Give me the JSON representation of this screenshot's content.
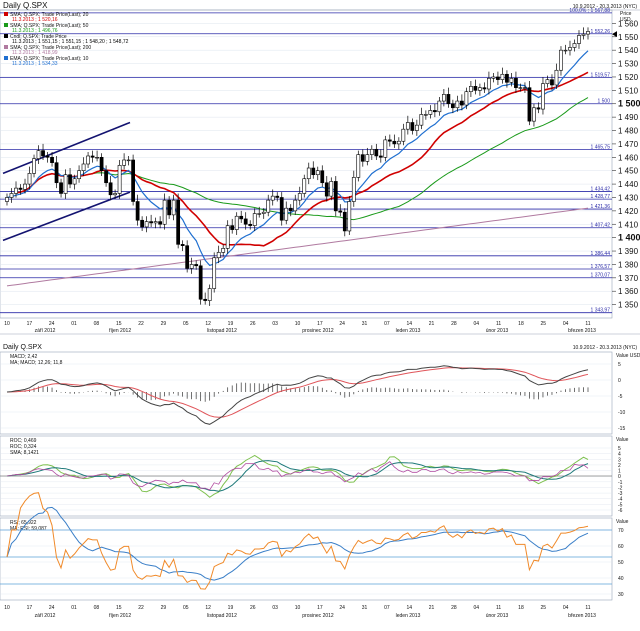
{
  "header": {
    "title": "Daily Q.SPX",
    "date_range": "10.9.2012 - 20.3.2013 (NYC)",
    "bottom_date_range": "10.9.2012 - 20.3.2013 (NYC)"
  },
  "main_panel": {
    "axis_title": "Price",
    "axis_unit": "USD",
    "legend": [
      {
        "label": "SMA; Q.SPX; Trade Price(Last); 20",
        "value": "11.3.2013 ; 1 520,16",
        "color": "#d00000"
      },
      {
        "label": "SMA; Q.SPX; Trade Price(Last); 50",
        "value": "11.3.2013 ; 1 496,76",
        "color": "#1a9a1a"
      },
      {
        "label": "Cndl; Q.SPX; Trade Price",
        "value": "11.3.2013 ; 1 551,15 ; 1 551,15 ; 1 548,20 ; 1 548,72",
        "color": "#000000"
      },
      {
        "label": "SMA; Q.SPX; Trade Price(Last); 200",
        "value": "11.3.2013 ; 1 418,99",
        "color": "#b07aa0"
      },
      {
        "label": "EMA; Q.SPX; Trade Price(Last); 10",
        "value": "11.3.2013 ; 1 534,33",
        "color": "#1f6fd0"
      }
    ],
    "level_labels": [
      "100,0% ; 1 567,88",
      "1 552,26",
      "1 519,57",
      "1 500",
      "1 465,75",
      "1 434,42",
      "1 428,77",
      "1 421,36",
      "1 407,42",
      "1 386,44",
      "1 376,57",
      "1 370,07",
      "1 343,97"
    ],
    "last_price_label": "1 552,26"
  },
  "chart_data": [
    {
      "type": "candlestick",
      "title": "Daily Q.SPX",
      "ylabel": "Price USD",
      "ylim": [
        1340,
        1570
      ],
      "yticks": [
        1350,
        1360,
        1370,
        1380,
        1390,
        1400,
        1410,
        1420,
        1430,
        1440,
        1450,
        1460,
        1470,
        1480,
        1490,
        1500,
        1510,
        1520,
        1530,
        1540,
        1550,
        1560
      ],
      "x_day_labels": [
        "10",
        "17",
        "24",
        "01",
        "08",
        "15",
        "22",
        "29",
        "05",
        "12",
        "19",
        "26",
        "03",
        "10",
        "17",
        "24",
        "31",
        "07",
        "14",
        "21",
        "28",
        "04",
        "11",
        "18",
        "25",
        "04",
        "11"
      ],
      "x_month_labels": [
        "září 2012",
        "říjen 2012",
        "listopad 2012",
        "prosinec 2012",
        "leden 2013",
        "únor 2013",
        "březen 2013"
      ],
      "horizontal_levels": [
        1567.88,
        1552.26,
        1519.57,
        1500,
        1465.75,
        1434.42,
        1428.77,
        1421.36,
        1407.42,
        1386.44,
        1376.57,
        1370.07,
        1343.97
      ],
      "trend_channel": [
        {
          "from": [
            "10.9.2012",
            1443
          ],
          "to": [
            "26.9.2012",
            1463
          ]
        },
        {
          "from": [
            "10.9.2012",
            1397
          ],
          "to": [
            "26.9.2012",
            1417
          ]
        },
        {
          "from": [
            "26.9.2012",
            1463
          ],
          "to": [
            "18.10.2012",
            1484
          ]
        },
        {
          "from": [
            "26.9.2012",
            1417
          ],
          "to": [
            "18.10.2012",
            1436
          ]
        }
      ],
      "close": [
        1430,
        1433,
        1437,
        1436,
        1440,
        1448,
        1459,
        1465,
        1461,
        1460,
        1456,
        1441,
        1433,
        1447,
        1440,
        1444,
        1450,
        1455,
        1461,
        1460,
        1460,
        1450,
        1441,
        1432,
        1433,
        1454,
        1458,
        1458,
        1427,
        1413,
        1408,
        1412,
        1411,
        1412,
        1410,
        1428,
        1417,
        1428,
        1395,
        1394,
        1377,
        1380,
        1379,
        1354,
        1353,
        1362,
        1385,
        1389,
        1392,
        1409,
        1406,
        1416,
        1414,
        1410,
        1409,
        1418,
        1418,
        1419,
        1428,
        1431,
        1430,
        1413,
        1422,
        1420,
        1428,
        1433,
        1444,
        1452,
        1447,
        1450,
        1441,
        1431,
        1442,
        1420,
        1419,
        1405,
        1427,
        1445,
        1462,
        1457,
        1462,
        1466,
        1461,
        1460,
        1473,
        1472,
        1470,
        1472,
        1481,
        1486,
        1480,
        1484,
        1492,
        1492,
        1495,
        1494,
        1502,
        1507,
        1500,
        1497,
        1502,
        1499,
        1509,
        1513,
        1510,
        1512,
        1511,
        1519,
        1520,
        1518,
        1522,
        1516,
        1519,
        1512,
        1512,
        1512,
        1487,
        1497,
        1496,
        1515,
        1518,
        1514,
        1525,
        1540,
        1540,
        1542,
        1545,
        1551,
        1552,
        1554
      ]
    },
    {
      "type": "line",
      "title": "MACD",
      "series": [
        {
          "name": "MACD; 2,42",
          "values": []
        },
        {
          "name": "MA; MACD; 12,26; 11,8",
          "values": []
        }
      ],
      "yticks": [
        5,
        0,
        -5,
        -10,
        -15
      ],
      "legend": [
        "MACD; 2,42",
        "MA; MACD; 12,26; 11,8"
      ]
    },
    {
      "type": "line",
      "title": "ROC",
      "legend": [
        "ROC; 0,469",
        "ROC; 0,324",
        "SMA; 8,1421"
      ],
      "yticks": [
        5,
        4,
        3,
        2,
        1,
        0,
        -1,
        -2,
        -3,
        -4,
        -5,
        -6
      ]
    },
    {
      "type": "line",
      "title": "RSI",
      "legend": [
        "RSI; 65,922",
        "MA; RSI; 59,087"
      ],
      "yticks": [
        70,
        60,
        50,
        40,
        30
      ],
      "levels": [
        70,
        50,
        30
      ]
    }
  ],
  "indicators": {
    "macd": {
      "legend": [
        "MACD; 2,42",
        "MA; MACD; 12,26; 11,8"
      ],
      "ticks": [
        "Value USD",
        "5",
        "0",
        "-5",
        "-10",
        "-15"
      ]
    },
    "roc": {
      "legend": [
        "ROC; 0,469",
        "ROC; 0,324",
        "SMA; 8,1421"
      ],
      "ticks": [
        "Value",
        "5",
        "4",
        "3",
        "2",
        "1",
        "0",
        "-1",
        "-2",
        "-3",
        "-4",
        "-5",
        "-6"
      ]
    },
    "rsi": {
      "legend": [
        "RSI; 65,922",
        "MA; RSI; 59,087"
      ],
      "ticks": [
        "Value",
        "USD",
        "70",
        "60",
        "50",
        "40",
        "30"
      ]
    }
  },
  "colors": {
    "background": "#ffffff",
    "grid": "#dde4ee",
    "level": "#2b2ba8",
    "channel": "#131370",
    "up": "#ffffff",
    "down": "#000000",
    "sma20": "#d00000",
    "sma50": "#1a9a1a",
    "sma200": "#b07aa0",
    "ema10": "#1f6fd0"
  }
}
